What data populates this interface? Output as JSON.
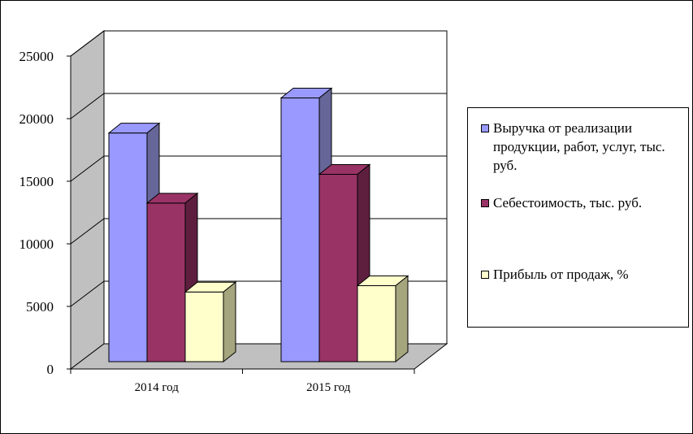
{
  "chart_data": {
    "type": "bar",
    "style": "3d-clustered-column",
    "categories": [
      "2014 год",
      "2015 год"
    ],
    "series": [
      {
        "name": "Выручка от реализации продукции, работ, услуг, тыс. руб.",
        "color": "#9999ff",
        "side": "#666699",
        "values": [
          18400,
          21200
        ]
      },
      {
        "name": "Себестоимость, тыс. руб.",
        "color": "#993366",
        "side": "#5e1f3f",
        "values": [
          12800,
          15100
        ]
      },
      {
        "name": "Прибыль от продаж, %",
        "color": "#ffffcc",
        "side": "#a6a67e",
        "values": [
          5700,
          6200
        ]
      }
    ],
    "ylim": [
      0,
      25000
    ],
    "yticks": [
      "0",
      "5000",
      "10000",
      "15000",
      "20000",
      "25000"
    ],
    "grid": true,
    "legend_position": "right"
  }
}
